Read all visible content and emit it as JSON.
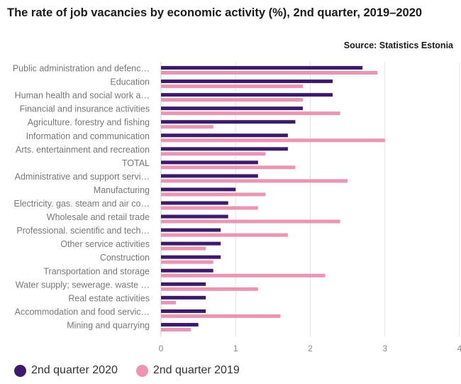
{
  "title": "The rate of job vacancies by economic activity (%), 2nd quarter, 2019–2020",
  "source": "Source: Statistics Estonia",
  "colors": {
    "series_2020": "#3d1a6e",
    "series_2019": "#ee93b0",
    "grid": "#e3e3e3",
    "label": "#777777"
  },
  "chart_data": {
    "type": "bar",
    "orientation": "horizontal",
    "title": "The rate of job vacancies by economic activity (%), 2nd quarter, 2019–2020",
    "categories": [
      "Public administration and defenc…",
      "Education",
      "Human health and social work a…",
      "Financial and insurance activities",
      "Agriculture. forestry and fishing",
      "Information and communication",
      "Arts. entertainment and recreation",
      "TOTAL",
      "Administrative and support servi…",
      "Manufacturing",
      "Electricity. gas. steam and air co…",
      "Wholesale and retail trade",
      "Professional. scientific and tech…",
      "Other service activities",
      "Construction",
      "Transportation and storage",
      "Water supply; sewerage. waste …",
      "Real estate activities",
      "Accommodation and food servic…",
      "Mining and quarrying"
    ],
    "series": [
      {
        "name": "2nd quarter 2020",
        "values": [
          2.7,
          2.3,
          2.3,
          1.9,
          1.8,
          1.7,
          1.7,
          1.3,
          1.3,
          1.0,
          0.9,
          0.9,
          0.8,
          0.8,
          0.8,
          0.7,
          0.6,
          0.6,
          0.6,
          0.5
        ]
      },
      {
        "name": "2nd quarter 2019",
        "values": [
          2.9,
          1.9,
          1.9,
          2.4,
          0.7,
          3.0,
          1.4,
          1.8,
          2.5,
          1.4,
          1.3,
          2.4,
          1.7,
          0.6,
          0.7,
          2.2,
          1.3,
          0.2,
          1.6,
          0.4
        ]
      }
    ],
    "xlim": [
      0,
      4
    ],
    "xticks": [
      "0",
      "1",
      "2",
      "3",
      "4"
    ],
    "grid": true,
    "legend_position": "bottom-left"
  }
}
